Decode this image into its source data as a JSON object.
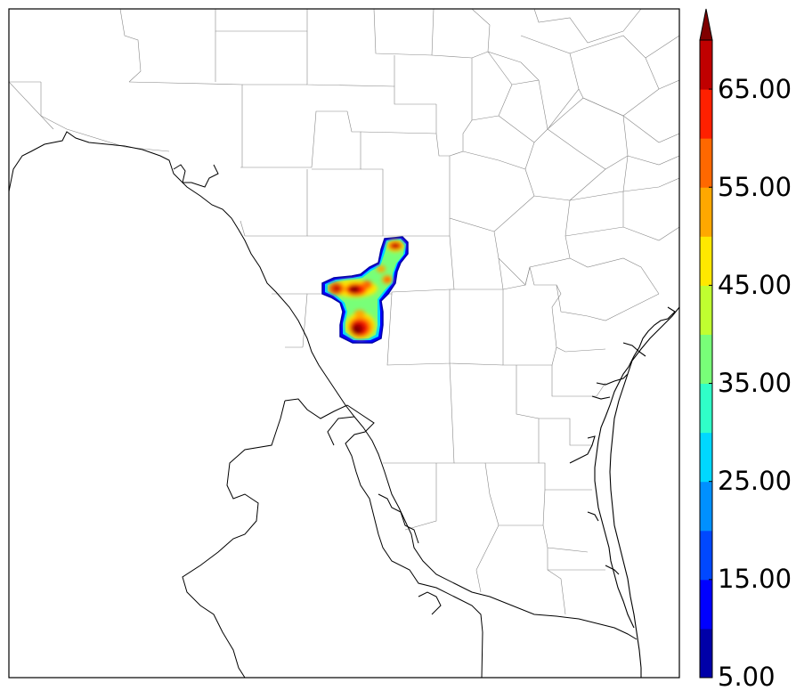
{
  "colorbar": {
    "tick_labels": [
      "5.00",
      "15.00",
      "25.00",
      "35.00",
      "45.00",
      "55.00",
      "65.00"
    ],
    "colors": [
      "#0000a8",
      "#0000ff",
      "#0048ff",
      "#0090ff",
      "#00d8ff",
      "#30ffc8",
      "#78ff78",
      "#c0ff30",
      "#ffe800",
      "#ffa800",
      "#ff6800",
      "#ff2000",
      "#c00000",
      "#800000"
    ],
    "extend": "max"
  },
  "chart_data": {
    "type": "heatmap",
    "levels": [
      5,
      10,
      15,
      20,
      25,
      30,
      35,
      40,
      45,
      50,
      55,
      60,
      65,
      70
    ],
    "colorbar_ticks": [
      5,
      15,
      25,
      35,
      45,
      55,
      65
    ],
    "extend": "max"
  }
}
